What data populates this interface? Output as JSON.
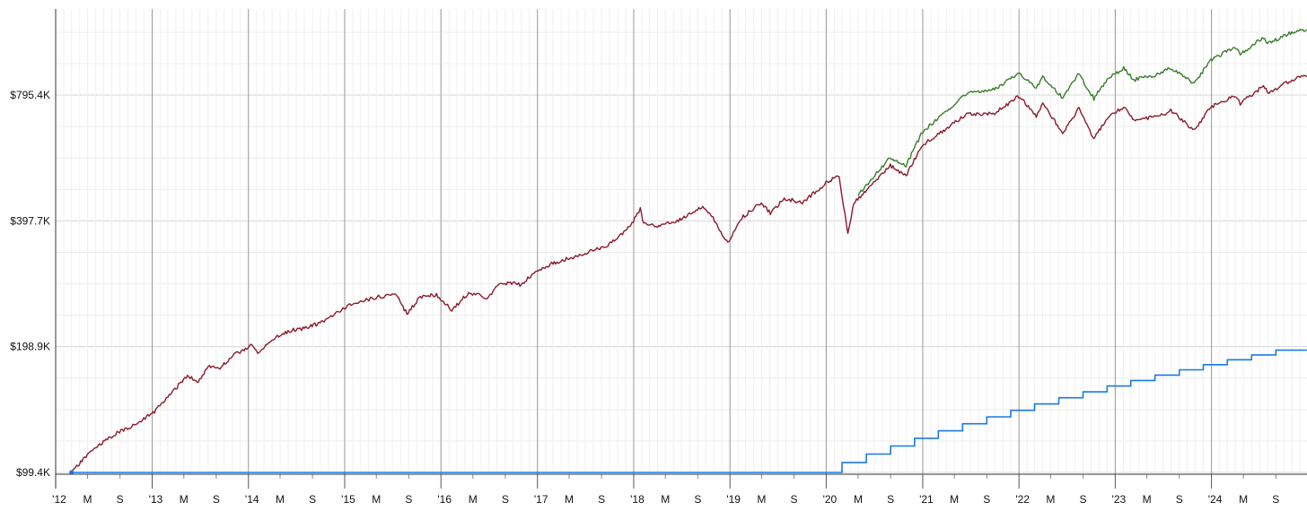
{
  "chart_data": {
    "type": "line",
    "title": "",
    "xlabel": "",
    "ylabel": "",
    "y_scale": "log",
    "ylim": [
      97500,
      1160000
    ],
    "xlim": [
      "2012-01-01",
      "2024-12-31"
    ],
    "grid": true,
    "legend": "none",
    "y_ticks": [
      {
        "value": 99400,
        "label": "$99.4K"
      },
      {
        "value": 198900,
        "label": "$198.9K"
      },
      {
        "value": 397700,
        "label": "$397.7K"
      },
      {
        "value": 795400,
        "label": "$795.4K"
      }
    ],
    "x_ticks": [
      {
        "date": "2012-01-01",
        "label": "'12",
        "major": true
      },
      {
        "date": "2012-05-01",
        "label": "M",
        "major": false
      },
      {
        "date": "2012-09-01",
        "label": "S",
        "major": false
      },
      {
        "date": "2013-01-01",
        "label": "'13",
        "major": true
      },
      {
        "date": "2013-05-01",
        "label": "M",
        "major": false
      },
      {
        "date": "2013-09-01",
        "label": "S",
        "major": false
      },
      {
        "date": "2014-01-01",
        "label": "'14",
        "major": true
      },
      {
        "date": "2014-05-01",
        "label": "M",
        "major": false
      },
      {
        "date": "2014-09-01",
        "label": "S",
        "major": false
      },
      {
        "date": "2015-01-01",
        "label": "'15",
        "major": true
      },
      {
        "date": "2015-05-01",
        "label": "M",
        "major": false
      },
      {
        "date": "2015-09-01",
        "label": "S",
        "major": false
      },
      {
        "date": "2016-01-01",
        "label": "'16",
        "major": true
      },
      {
        "date": "2016-05-01",
        "label": "M",
        "major": false
      },
      {
        "date": "2016-09-01",
        "label": "S",
        "major": false
      },
      {
        "date": "2017-01-01",
        "label": "'17",
        "major": true
      },
      {
        "date": "2017-05-01",
        "label": "M",
        "major": false
      },
      {
        "date": "2017-09-01",
        "label": "S",
        "major": false
      },
      {
        "date": "2018-01-01",
        "label": "'18",
        "major": true
      },
      {
        "date": "2018-05-01",
        "label": "M",
        "major": false
      },
      {
        "date": "2018-09-01",
        "label": "S",
        "major": false
      },
      {
        "date": "2019-01-01",
        "label": "'19",
        "major": true
      },
      {
        "date": "2019-05-01",
        "label": "M",
        "major": false
      },
      {
        "date": "2019-09-01",
        "label": "S",
        "major": false
      },
      {
        "date": "2020-01-01",
        "label": "'20",
        "major": true
      },
      {
        "date": "2020-05-01",
        "label": "M",
        "major": false
      },
      {
        "date": "2020-09-01",
        "label": "S",
        "major": false
      },
      {
        "date": "2021-01-01",
        "label": "'21",
        "major": true
      },
      {
        "date": "2021-05-01",
        "label": "M",
        "major": false
      },
      {
        "date": "2021-09-01",
        "label": "S",
        "major": false
      },
      {
        "date": "2022-01-01",
        "label": "'22",
        "major": true
      },
      {
        "date": "2022-05-01",
        "label": "M",
        "major": false
      },
      {
        "date": "2022-09-01",
        "label": "S",
        "major": false
      },
      {
        "date": "2023-01-01",
        "label": "'23",
        "major": true
      },
      {
        "date": "2023-05-01",
        "label": "M",
        "major": false
      },
      {
        "date": "2023-09-01",
        "label": "S",
        "major": false
      },
      {
        "date": "2024-01-01",
        "label": "'24",
        "major": true
      },
      {
        "date": "2024-05-01",
        "label": "M",
        "major": false
      },
      {
        "date": "2024-09-01",
        "label": "S",
        "major": false
      }
    ],
    "series": [
      {
        "color": "#8b1a2b",
        "points": [
          [
            "2012-03-01",
            99400
          ],
          [
            "2012-05-15",
            112000
          ],
          [
            "2012-08-15",
            123000
          ],
          [
            "2012-11-15",
            131000
          ],
          [
            "2013-01-15",
            140000
          ],
          [
            "2013-04-01",
            158000
          ],
          [
            "2013-05-15",
            170000
          ],
          [
            "2013-06-20",
            163000
          ],
          [
            "2013-08-01",
            178000
          ],
          [
            "2013-09-15",
            177000
          ],
          [
            "2013-11-15",
            191000
          ],
          [
            "2014-01-15",
            201000
          ],
          [
            "2014-02-05",
            191000
          ],
          [
            "2014-04-01",
            207000
          ],
          [
            "2014-06-15",
            218000
          ],
          [
            "2014-08-01",
            220000
          ],
          [
            "2014-10-15",
            228000
          ],
          [
            "2014-12-15",
            243000
          ],
          [
            "2015-02-15",
            254000
          ],
          [
            "2015-05-15",
            262000
          ],
          [
            "2015-07-15",
            266000
          ],
          [
            "2015-08-25",
            238000
          ],
          [
            "2015-10-15",
            262000
          ],
          [
            "2015-12-15",
            265000
          ],
          [
            "2016-02-11",
            243000
          ],
          [
            "2016-04-15",
            268000
          ],
          [
            "2016-06-27",
            260000
          ],
          [
            "2016-08-15",
            283000
          ],
          [
            "2016-11-01",
            280000
          ],
          [
            "2016-12-15",
            297000
          ],
          [
            "2017-03-01",
            315000
          ],
          [
            "2017-06-15",
            330000
          ],
          [
            "2017-09-15",
            345000
          ],
          [
            "2017-12-20",
            385000
          ],
          [
            "2018-01-26",
            425000
          ],
          [
            "2018-02-08",
            392000
          ],
          [
            "2018-04-01",
            384000
          ],
          [
            "2018-06-15",
            398000
          ],
          [
            "2018-09-20",
            430000
          ],
          [
            "2018-10-29",
            405000
          ],
          [
            "2018-12-24",
            350000
          ],
          [
            "2019-02-15",
            405000
          ],
          [
            "2019-04-30",
            440000
          ],
          [
            "2019-06-03",
            415000
          ],
          [
            "2019-07-26",
            450000
          ],
          [
            "2019-10-03",
            440000
          ],
          [
            "2019-12-31",
            490000
          ],
          [
            "2020-02-19",
            512000
          ],
          [
            "2020-03-23",
            370000
          ],
          [
            "2020-04-15",
            440000
          ],
          [
            "2020-06-08",
            475000
          ],
          [
            "2020-08-31",
            540000
          ],
          [
            "2020-10-30",
            510000
          ],
          [
            "2020-12-31",
            605000
          ],
          [
            "2021-03-15",
            650000
          ],
          [
            "2021-06-15",
            715000
          ],
          [
            "2021-09-30",
            720000
          ],
          [
            "2021-12-31",
            790000
          ],
          [
            "2022-03-08",
            710000
          ],
          [
            "2022-04-01",
            760000
          ],
          [
            "2022-06-16",
            645000
          ],
          [
            "2022-08-16",
            740000
          ],
          [
            "2022-10-12",
            625000
          ],
          [
            "2022-12-01",
            700000
          ],
          [
            "2023-02-02",
            745000
          ],
          [
            "2023-03-13",
            695000
          ],
          [
            "2023-06-15",
            705000
          ],
          [
            "2023-07-31",
            732000
          ],
          [
            "2023-10-27",
            655000
          ],
          [
            "2023-12-29",
            745000
          ],
          [
            "2024-03-28",
            790000
          ],
          [
            "2024-04-19",
            760000
          ],
          [
            "2024-07-16",
            835000
          ],
          [
            "2024-08-05",
            805000
          ],
          [
            "2024-11-11",
            872000
          ],
          [
            "2024-12-28",
            880000
          ]
        ]
      },
      {
        "color": "#3a7d2c",
        "points": [
          [
            "2020-05-01",
            457000
          ],
          [
            "2020-06-08",
            490000
          ],
          [
            "2020-08-31",
            565000
          ],
          [
            "2020-10-30",
            540000
          ],
          [
            "2020-12-31",
            650000
          ],
          [
            "2021-03-15",
            710000
          ],
          [
            "2021-06-15",
            800000
          ],
          [
            "2021-09-30",
            820000
          ],
          [
            "2021-12-31",
            900000
          ],
          [
            "2022-03-08",
            830000
          ],
          [
            "2022-04-01",
            880000
          ],
          [
            "2022-06-16",
            785000
          ],
          [
            "2022-08-16",
            895000
          ],
          [
            "2022-10-12",
            780000
          ],
          [
            "2022-12-01",
            865000
          ],
          [
            "2023-02-02",
            925000
          ],
          [
            "2023-03-13",
            865000
          ],
          [
            "2023-06-15",
            890000
          ],
          [
            "2023-07-31",
            925000
          ],
          [
            "2023-10-27",
            845000
          ],
          [
            "2023-12-29",
            965000
          ],
          [
            "2024-03-28",
            1035000
          ],
          [
            "2024-04-19",
            1000000
          ],
          [
            "2024-07-16",
            1090000
          ],
          [
            "2024-08-05",
            1060000
          ],
          [
            "2024-11-11",
            1130000
          ],
          [
            "2024-12-28",
            1140000
          ]
        ]
      },
      {
        "color": "#1a78e6",
        "step": true,
        "points": [
          [
            "2012-03-01",
            99400
          ],
          [
            "2020-03-01",
            99400
          ],
          [
            "2020-03-01",
            105000
          ],
          [
            "2020-06-01",
            105000
          ],
          [
            "2020-06-01",
            110000
          ],
          [
            "2020-09-01",
            110000
          ],
          [
            "2020-09-01",
            115000
          ],
          [
            "2020-12-01",
            115000
          ],
          [
            "2020-12-01",
            120000
          ],
          [
            "2021-03-01",
            120000
          ],
          [
            "2021-03-01",
            125000
          ],
          [
            "2021-06-01",
            125000
          ],
          [
            "2021-06-01",
            130000
          ],
          [
            "2021-09-01",
            130000
          ],
          [
            "2021-09-01",
            135000
          ],
          [
            "2021-12-01",
            135000
          ],
          [
            "2021-12-01",
            140000
          ],
          [
            "2022-03-01",
            140000
          ],
          [
            "2022-03-01",
            145000
          ],
          [
            "2022-06-01",
            145000
          ],
          [
            "2022-06-01",
            150000
          ],
          [
            "2022-09-01",
            150000
          ],
          [
            "2022-09-01",
            155000
          ],
          [
            "2022-12-01",
            155000
          ],
          [
            "2022-12-01",
            160000
          ],
          [
            "2023-03-01",
            160000
          ],
          [
            "2023-03-01",
            165000
          ],
          [
            "2023-06-01",
            165000
          ],
          [
            "2023-06-01",
            170000
          ],
          [
            "2023-09-01",
            170000
          ],
          [
            "2023-09-01",
            175000
          ],
          [
            "2023-12-01",
            175000
          ],
          [
            "2023-12-01",
            180000
          ],
          [
            "2024-03-01",
            180000
          ],
          [
            "2024-03-01",
            185000
          ],
          [
            "2024-06-01",
            185000
          ],
          [
            "2024-06-01",
            190000
          ],
          [
            "2024-09-01",
            190000
          ],
          [
            "2024-09-01",
            195000
          ],
          [
            "2024-12-28",
            195000
          ]
        ]
      }
    ]
  }
}
